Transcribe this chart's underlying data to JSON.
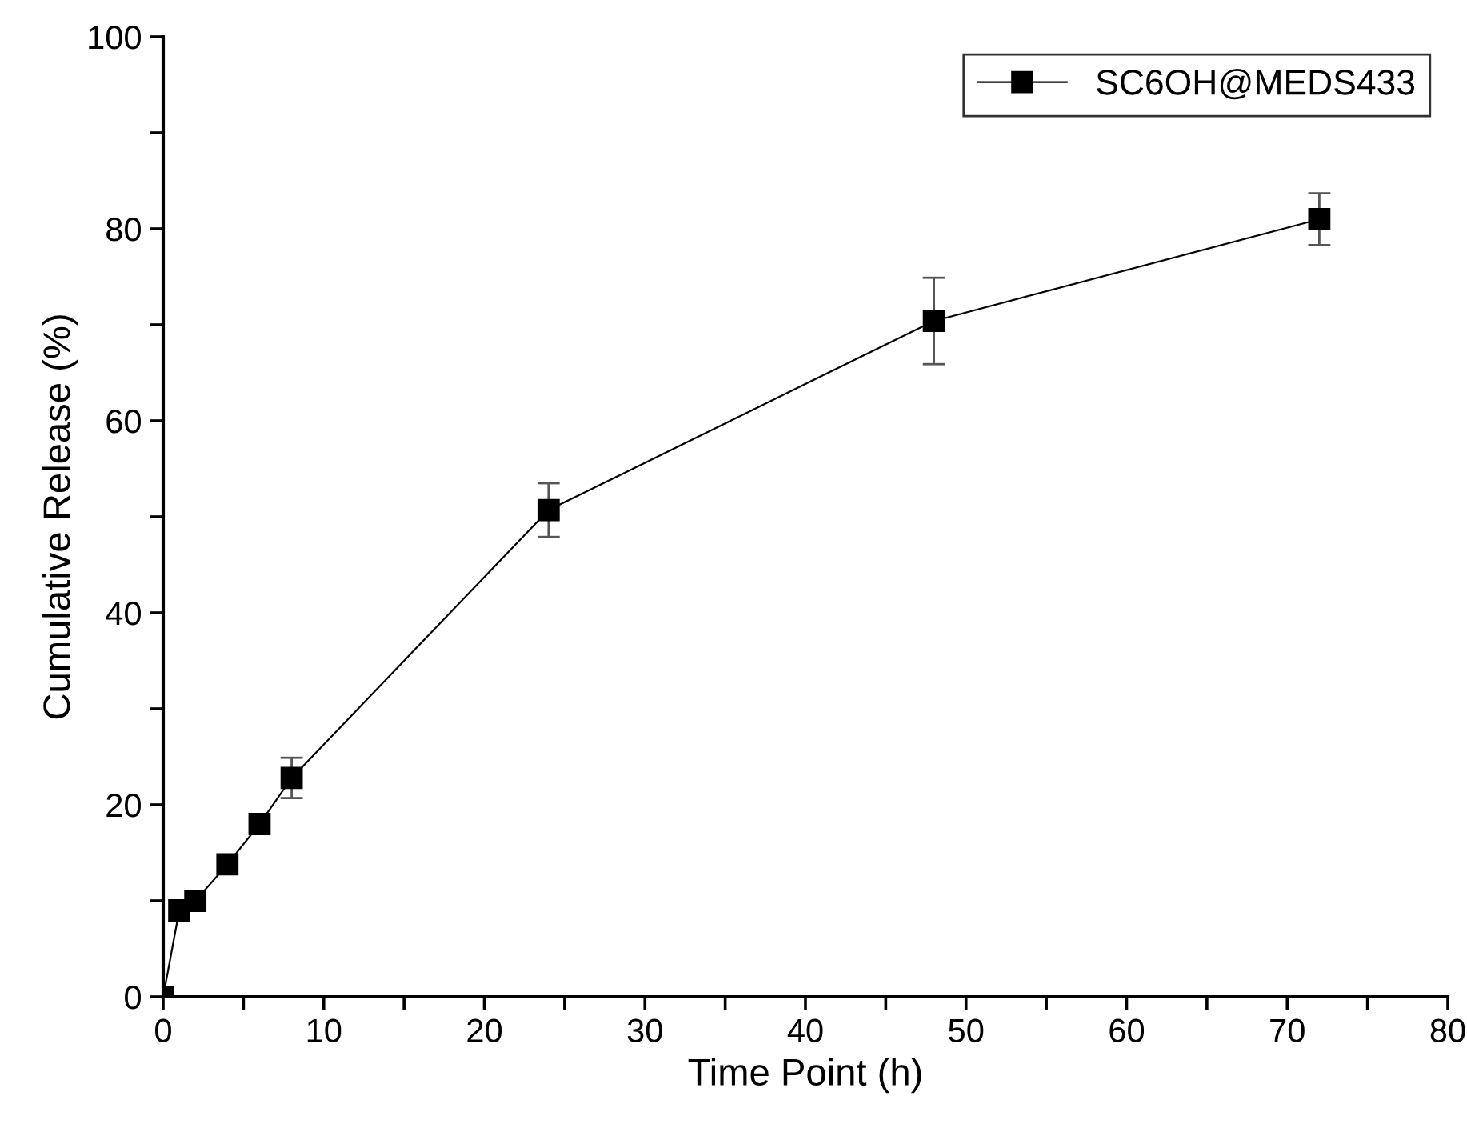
{
  "chart_data": {
    "type": "line",
    "xlabel": "Time Point (h)",
    "ylabel": "Cumulative Release (%)",
    "x": [
      0,
      1,
      2,
      4,
      6,
      8,
      24,
      48,
      72
    ],
    "series": [
      {
        "name": "SC6OH@MEDS433",
        "color": "#000000",
        "values": [
          0,
          9,
          10,
          13.8,
          18,
          22.8,
          50.7,
          70.4,
          81
        ],
        "errors": [
          null,
          null,
          null,
          null,
          null,
          2.1,
          2.8,
          4.5,
          2.7
        ]
      }
    ],
    "xlim": [
      0,
      80
    ],
    "ylim": [
      0,
      100
    ],
    "xticks": [
      0,
      {
        "value": 5,
        "label": null
      },
      10,
      {
        "value": 15,
        "label": null
      },
      20,
      {
        "value": 25,
        "label": null
      },
      30,
      {
        "value": 35,
        "label": null
      },
      40,
      {
        "value": 45,
        "label": null
      },
      50,
      {
        "value": 55,
        "label": null
      },
      60,
      {
        "value": 65,
        "label": null
      },
      70,
      {
        "value": 75,
        "label": null
      },
      80
    ],
    "yticks": [
      0,
      {
        "value": 10,
        "label": null
      },
      20,
      {
        "value": 30,
        "label": null
      },
      40,
      {
        "value": 50,
        "label": null
      },
      60,
      {
        "value": 70,
        "label": null
      },
      80,
      {
        "value": 90,
        "label": null
      },
      100
    ],
    "marker": "square",
    "line_style": "solid",
    "legend": "top right",
    "grid": false
  }
}
